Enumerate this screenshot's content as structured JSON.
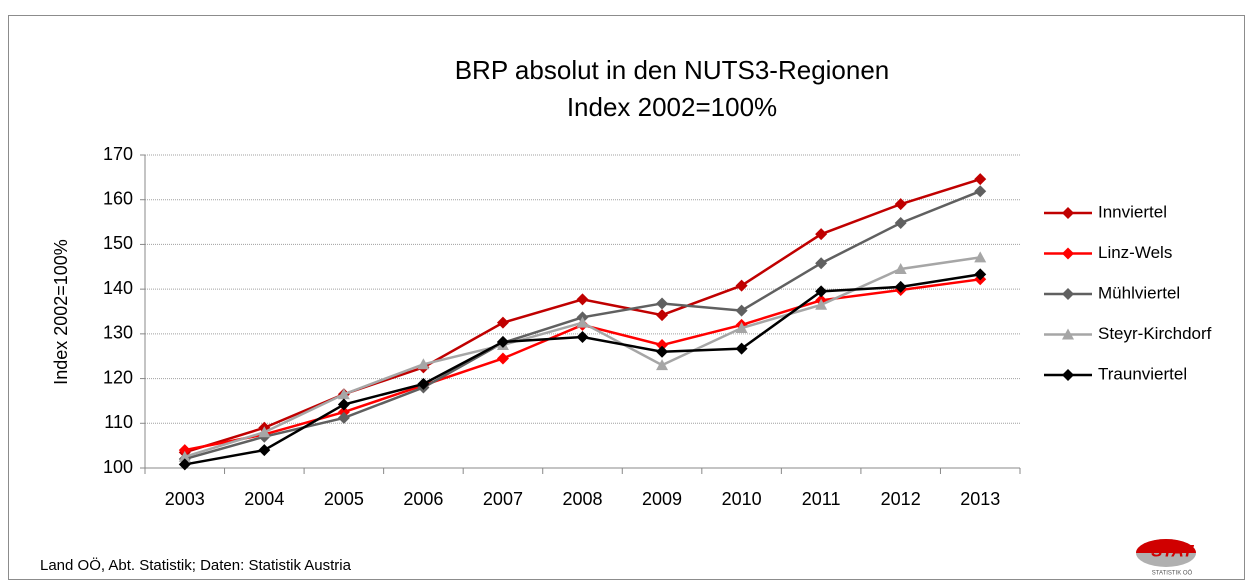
{
  "chart_data": {
    "type": "line",
    "title": "BRP absolut in den NUTS3-Regionen",
    "subtitle": "Index 2002=100%",
    "y_label": "Index 2002=100%",
    "source": "Land OÖ, Abt. Statistik; Daten: Statistik Austria",
    "logo": {
      "text": "STAT",
      "subtext": "STATISTIK OÖ"
    },
    "categories": [
      "2003",
      "2004",
      "2005",
      "2006",
      "2007",
      "2008",
      "2009",
      "2010",
      "2011",
      "2012",
      "2013"
    ],
    "ylim": [
      100,
      170
    ],
    "yticks": [
      100,
      110,
      120,
      130,
      140,
      150,
      160,
      170
    ],
    "grid": true,
    "legend": "right",
    "series": [
      {
        "name": "Innviertel",
        "color": "#c00000",
        "marker": "diamond",
        "values": [
          103.5,
          109,
          116.5,
          122.5,
          132.5,
          137.7,
          134.2,
          140.8,
          152.3,
          159,
          164.6
        ]
      },
      {
        "name": "Linz-Wels",
        "color": "#ff0000",
        "marker": "diamond",
        "values": [
          104,
          107.5,
          112.5,
          118.5,
          124.5,
          132,
          127.5,
          132,
          137.5,
          139.8,
          142.2
        ]
      },
      {
        "name": "Mühlviertel",
        "color": "#606060",
        "marker": "diamond",
        "values": [
          102,
          107,
          111.2,
          118,
          128,
          133.7,
          136.8,
          135.2,
          145.8,
          154.8,
          161.9
        ]
      },
      {
        "name": "Steyr-Kirchdorf",
        "color": "#a6a6a6",
        "marker": "triangle",
        "values": [
          102.5,
          108,
          116.5,
          123.2,
          127.5,
          132.5,
          123,
          131.3,
          136.5,
          144.5,
          147.1
        ]
      },
      {
        "name": "Traunviertel",
        "color": "#000000",
        "marker": "diamond",
        "values": [
          100.8,
          104,
          114.2,
          118.8,
          128.2,
          129.3,
          126,
          126.7,
          139.5,
          140.5,
          143.3
        ]
      }
    ]
  }
}
